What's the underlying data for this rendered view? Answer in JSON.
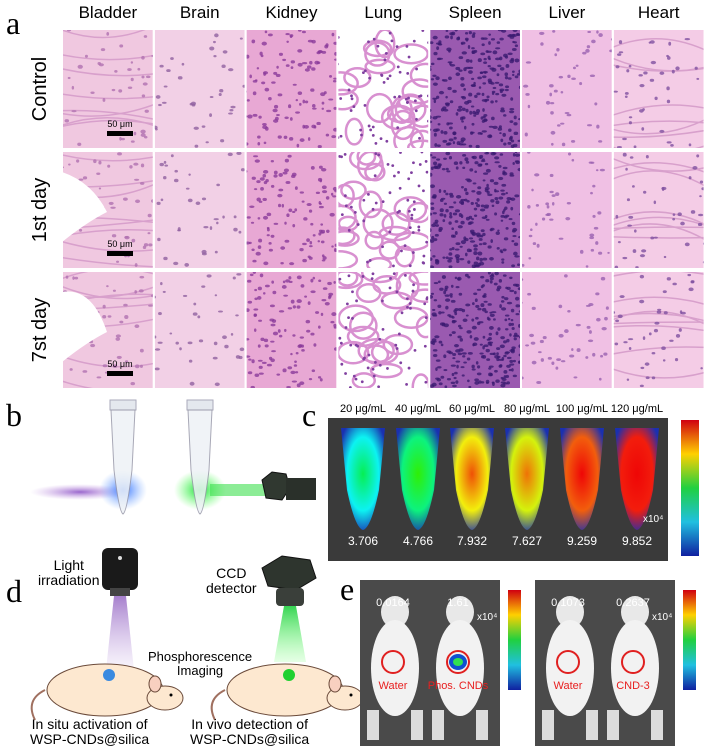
{
  "panel_a": {
    "label": "a",
    "tissues": [
      "Bladder",
      "Brain",
      "Kidney",
      "Lung",
      "Spleen",
      "Liver",
      "Heart"
    ],
    "conditions": [
      "Control",
      "1st day",
      "7st day"
    ],
    "scale_bar": "50 μm"
  },
  "panel_b": {
    "label": "b"
  },
  "panel_c": {
    "label": "c",
    "concentrations": [
      "20 μg/mL",
      "40 μg/mL",
      "60 μg/mL",
      "80 μg/mL",
      "100 μg/mL",
      "120 μg/mL"
    ],
    "intensities": [
      "3.706",
      "4.766",
      "7.932",
      "7.627",
      "9.259",
      "9.852"
    ],
    "scale": "x10⁴"
  },
  "panel_d": {
    "label": "d",
    "light_source": "Light\nirradiation",
    "detector": "CCD\ndetector",
    "process": "Phosphorescence\nImaging",
    "activation": "In situ activation of\nWSP-CNDs@silica",
    "detection": "In vivo detection of\nWSP-CNDs@silica"
  },
  "panel_e": {
    "label": "e",
    "images": [
      {
        "intensities": [
          "0.0164",
          "1.61"
        ],
        "scale": "x10⁴",
        "labels": [
          "Water",
          "Phos. CNDs"
        ]
      },
      {
        "intensities": [
          "0.1073",
          "0.2637"
        ],
        "scale": "x10⁴",
        "labels": [
          "Water",
          "CND-3"
        ]
      }
    ]
  }
}
